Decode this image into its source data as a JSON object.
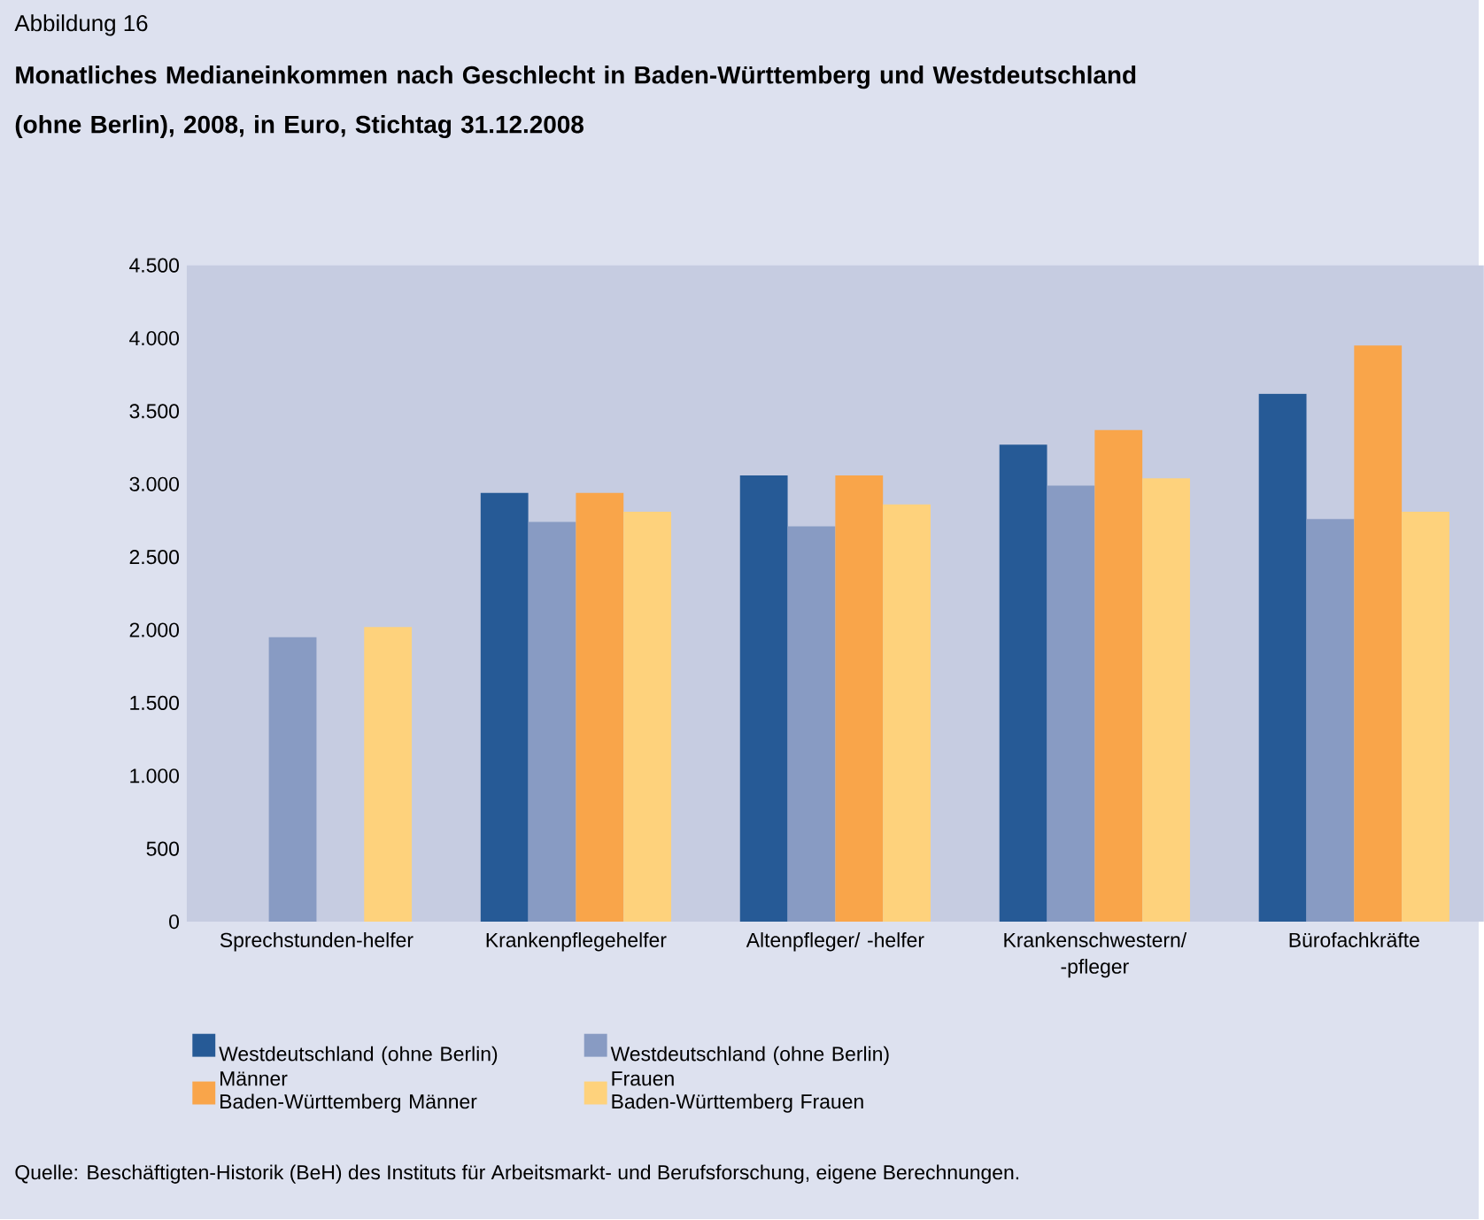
{
  "chart_data": {
    "type": "bar",
    "title": "Monatliches Medianeinkommen nach Geschlecht in Baden-Württemberg und Westdeutschland (ohne Berlin), 2008, in Euro, Stichtag 31.12.2008",
    "annotations": [
      "Abbildung 16",
      "Quelle: Beschäftigten-Historik (BeH) des Instituts für Arbeitsmarkt- und Berufsforschung, eigene Berechnungen."
    ],
    "categories": [
      "Sprechstunden-helfer",
      "Krankenpflegehelfer",
      "Altenpfleger/ -helfer",
      "Krankenschwestern/ -pfleger",
      "Bürofachkräfte"
    ],
    "series": [
      {
        "name": "Westdeutschland (ohne Berlin) Männer",
        "color": "#265a96",
        "values": [
          null,
          2940,
          3060,
          3270,
          3620
        ]
      },
      {
        "name": "Westdeutschland (ohne Berlin) Frauen",
        "color": "#889bc3",
        "values": [
          1950,
          2740,
          2710,
          2990,
          2760
        ]
      },
      {
        "name": "Baden-Württemberg Männer",
        "color": "#f9a54a",
        "values": [
          null,
          2940,
          3060,
          3370,
          3950
        ]
      },
      {
        "name": "Baden-Württemberg Frauen",
        "color": "#fed27c",
        "values": [
          2020,
          2810,
          2860,
          3040,
          2810
        ]
      }
    ],
    "ylim": [
      0,
      4500
    ],
    "yticks": [
      0,
      {
        "value": 500,
        "label": "500"
      },
      {
        "value": 1000,
        "label": "1.000"
      },
      {
        "value": 1500,
        "label": "1.500"
      },
      {
        "value": 2000,
        "label": "2.000"
      },
      {
        "value": 2500,
        "label": "2.500"
      },
      {
        "value": 3000,
        "label": "3.000"
      },
      {
        "value": 3500,
        "label": "3.500"
      },
      {
        "value": 4000,
        "label": "4.000"
      },
      {
        "value": 4500,
        "label": "4.500"
      }
    ],
    "grid": false,
    "legend": "bottom"
  }
}
